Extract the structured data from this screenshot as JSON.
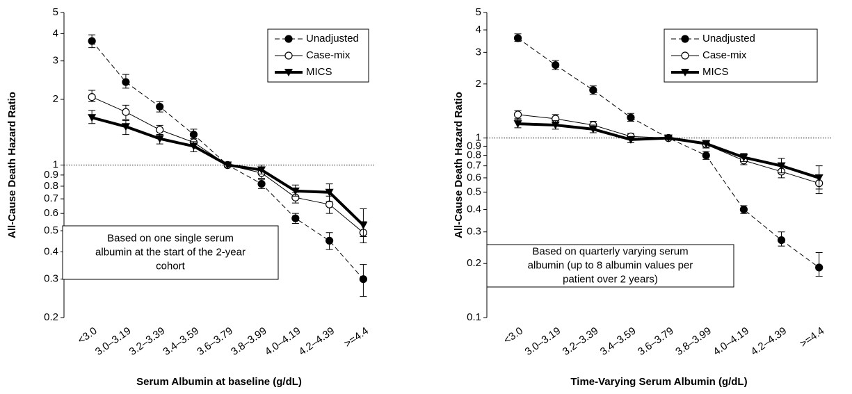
{
  "chart_data": [
    {
      "type": "line",
      "yscale": "log",
      "ylabel": "All-Cause Death Hazard Ratio",
      "xlabel": "Serum Albumin at baseline (g/dL)",
      "annotation": [
        "Based on one single serum",
        "albumin at the start of the 2-year",
        "cohort"
      ],
      "reference_line": 1,
      "legend": "upper right",
      "categories": [
        "<3.0",
        "3.0–3.19",
        "3.2–3.39",
        "3.4–3.59",
        "3.6–3.79",
        "3.8–3.99",
        "4.0–4.19",
        "4.2–4.39",
        ">=4.4"
      ],
      "ylim": [
        0.2,
        5
      ],
      "yticks": [
        0.2,
        0.3,
        0.4,
        0.5,
        0.6,
        0.7,
        0.8,
        0.9,
        1,
        2,
        3,
        4,
        5
      ],
      "series": [
        {
          "name": "Unadjusted",
          "color": "#000000",
          "marker": "filled-circle",
          "dash": true,
          "width": 1,
          "values": [
            3.7,
            2.4,
            1.85,
            1.38,
            1.0,
            0.82,
            0.57,
            0.45,
            0.3
          ],
          "lower": [
            3.45,
            2.25,
            1.75,
            1.3,
            0.98,
            0.78,
            0.54,
            0.41,
            0.25
          ],
          "upper": [
            3.95,
            2.6,
            1.95,
            1.46,
            1.02,
            0.86,
            0.6,
            0.49,
            0.35
          ]
        },
        {
          "name": "Case-mix",
          "color": "#000000",
          "marker": "open-circle",
          "dash": false,
          "width": 1,
          "values": [
            2.05,
            1.75,
            1.45,
            1.27,
            1.0,
            0.92,
            0.71,
            0.66,
            0.49
          ],
          "lower": [
            1.95,
            1.62,
            1.38,
            1.22,
            0.98,
            0.87,
            0.67,
            0.6,
            0.44
          ],
          "upper": [
            2.2,
            1.88,
            1.52,
            1.32,
            1.02,
            0.97,
            0.75,
            0.72,
            0.55
          ]
        },
        {
          "name": "MICS",
          "color": "#000000",
          "marker": "triangle-down",
          "dash": false,
          "width": 4,
          "values": [
            1.65,
            1.5,
            1.32,
            1.22,
            1.0,
            0.95,
            0.76,
            0.75,
            0.53
          ],
          "lower": [
            1.55,
            1.38,
            1.25,
            1.15,
            0.98,
            0.91,
            0.72,
            0.68,
            0.47
          ],
          "upper": [
            1.78,
            1.6,
            1.38,
            1.28,
            1.02,
            1.0,
            0.81,
            0.82,
            0.63
          ]
        }
      ]
    },
    {
      "type": "line",
      "yscale": "log",
      "ylabel": "All-Cause Death Hazard Ratio",
      "xlabel": "Time-Varying Serum Albumin (g/dL)",
      "annotation": [
        "Based on quarterly varying serum",
        "albumin (up to 8 albumin values per",
        "patient over 2 years)"
      ],
      "reference_line": 1,
      "legend": "upper right",
      "categories": [
        "<3.0",
        "3.0–3.19",
        "3.2–3.39",
        "3.4–3.59",
        "3.6–3.79",
        "3.8–3.99",
        "4.0–4.19",
        "4.2–4.39",
        ">=4.4"
      ],
      "ylim": [
        0.1,
        5
      ],
      "yticks": [
        0.1,
        0.2,
        0.3,
        0.4,
        0.5,
        0.6,
        0.7,
        0.8,
        0.9,
        1,
        2,
        3,
        4,
        5
      ],
      "series": [
        {
          "name": "Unadjusted",
          "color": "#000000",
          "marker": "filled-circle",
          "dash": true,
          "width": 1,
          "values": [
            3.6,
            2.55,
            1.85,
            1.3,
            1.0,
            0.8,
            0.4,
            0.27,
            0.19
          ],
          "lower": [
            3.45,
            2.4,
            1.75,
            1.24,
            0.98,
            0.76,
            0.38,
            0.25,
            0.17
          ],
          "upper": [
            3.8,
            2.7,
            1.95,
            1.37,
            1.02,
            0.84,
            0.42,
            0.3,
            0.23
          ]
        },
        {
          "name": "Case-mix",
          "color": "#000000",
          "marker": "open-circle",
          "dash": false,
          "width": 1,
          "values": [
            1.35,
            1.28,
            1.18,
            1.02,
            1.0,
            0.92,
            0.75,
            0.65,
            0.56
          ],
          "lower": [
            1.28,
            1.22,
            1.13,
            0.98,
            0.98,
            0.88,
            0.71,
            0.6,
            0.49
          ],
          "upper": [
            1.42,
            1.35,
            1.24,
            1.06,
            1.02,
            0.96,
            0.8,
            0.7,
            0.62
          ]
        },
        {
          "name": "MICS",
          "color": "#000000",
          "marker": "triangle-down",
          "dash": false,
          "width": 4,
          "values": [
            1.2,
            1.18,
            1.12,
            0.98,
            1.0,
            0.93,
            0.78,
            0.7,
            0.6
          ],
          "lower": [
            1.14,
            1.12,
            1.07,
            0.94,
            0.98,
            0.89,
            0.74,
            0.64,
            0.52
          ],
          "upper": [
            1.27,
            1.25,
            1.18,
            1.02,
            1.02,
            0.97,
            0.82,
            0.77,
            0.7
          ]
        }
      ]
    }
  ]
}
